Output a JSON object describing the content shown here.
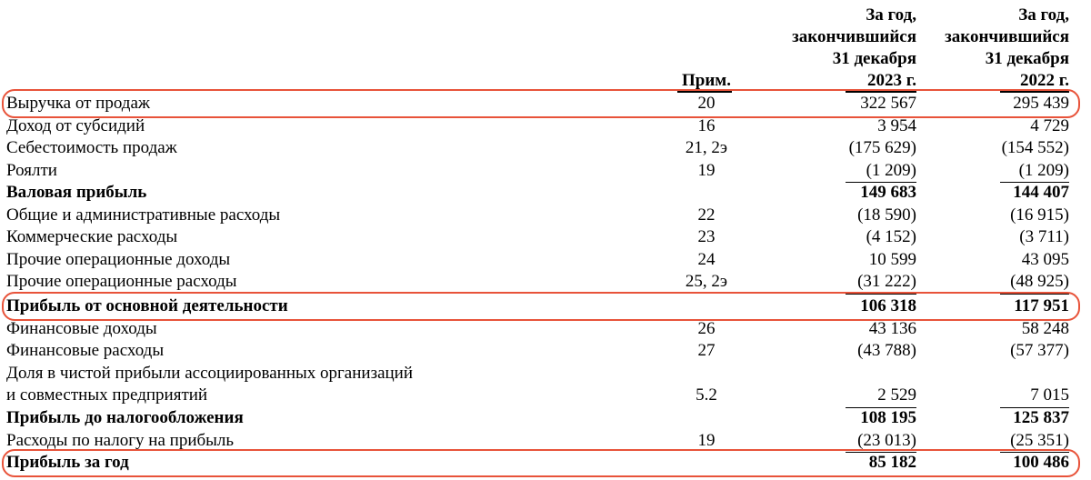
{
  "header": {
    "note_label": "Прим.",
    "col_2023": [
      "За год,",
      "закончившийся",
      "31 декабря",
      "2023 г."
    ],
    "col_2022": [
      "За год,",
      "закончившийся",
      "31 декабря",
      "2022 г."
    ]
  },
  "rows": [
    {
      "label": "Выручка от продаж",
      "note": "20",
      "v2023": "322 567",
      "v2022": "295 439"
    },
    {
      "label": "Доход от субсидий",
      "note": "16",
      "v2023": "3 954",
      "v2022": "4 729"
    },
    {
      "label": "Себестоимость продаж",
      "note": "21, 2э",
      "v2023": "(175 629)",
      "v2022": "(154 552)"
    },
    {
      "label": "Роялти",
      "note": "19",
      "v2023": "(1 209)",
      "v2022": "(1 209)"
    },
    {
      "label": "Валовая прибыль",
      "note": "",
      "v2023": "149 683",
      "v2022": "144 407"
    },
    {
      "label": "Общие и административные расходы",
      "note": "22",
      "v2023": "(18 590)",
      "v2022": "(16 915)"
    },
    {
      "label": "Коммерческие расходы",
      "note": "23",
      "v2023": "(4 152)",
      "v2022": "(3 711)"
    },
    {
      "label": "Прочие операционные доходы",
      "note": "24",
      "v2023": "10 599",
      "v2022": "43 095"
    },
    {
      "label": "Прочие операционные расходы",
      "note": "25, 2э",
      "v2023": "(31 222)",
      "v2022": "(48 925)"
    },
    {
      "label": "Прибыль от основной деятельности",
      "note": "",
      "v2023": "106 318",
      "v2022": "117 951"
    },
    {
      "label": "Финансовые доходы",
      "note": "26",
      "v2023": "43 136",
      "v2022": "58 248"
    },
    {
      "label": "Финансовые расходы",
      "note": "27",
      "v2023": "(43 788)",
      "v2022": "(57 377)"
    },
    {
      "label": "Доля в чистой прибыли ассоциированных организаций",
      "note": "",
      "v2023": "",
      "v2022": ""
    },
    {
      "label": "и совместных предприятий",
      "note": "5.2",
      "v2023": "2 529",
      "v2022": "7 015"
    },
    {
      "label": "Прибыль до налогообложения",
      "note": "",
      "v2023": "108 195",
      "v2022": "125 837"
    },
    {
      "label": "Расходы по налогу на прибыль",
      "note": "19",
      "v2023": "(23 013)",
      "v2022": "(25 351)"
    },
    {
      "label": "Прибыль за год",
      "note": "",
      "v2023": "85 182",
      "v2022": "100 486"
    }
  ],
  "highlight_color": "#e8533a"
}
